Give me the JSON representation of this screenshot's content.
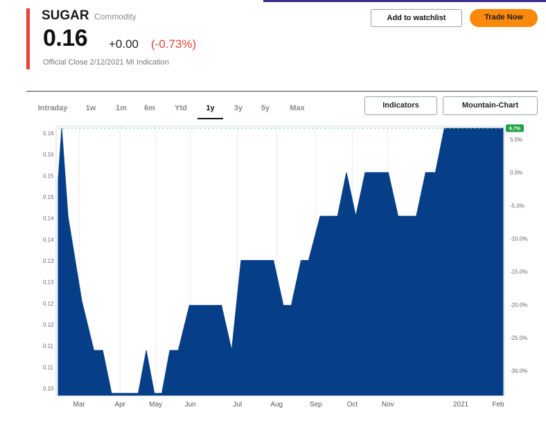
{
  "header": {
    "symbol": "SUGAR",
    "asset_type": "Commodity",
    "price": "0.16",
    "change": "+0.00",
    "change_pct": "(-0.73%)",
    "close_info": "Official Close 2/12/2021 MI Indication",
    "accent_color": "#e8433a"
  },
  "actions": {
    "watchlist_label": "Add to watchlist",
    "trade_label": "Trade Now"
  },
  "range_tabs": [
    {
      "label": "Intraday",
      "active": false
    },
    {
      "label": "1w",
      "active": false
    },
    {
      "label": "1m",
      "active": false
    },
    {
      "label": "6m",
      "active": false
    },
    {
      "label": "Ytd",
      "active": false
    },
    {
      "label": "1y",
      "active": true
    },
    {
      "label": "3y",
      "active": false
    },
    {
      "label": "5y",
      "active": false
    },
    {
      "label": "Max",
      "active": false
    }
  ],
  "chart_controls": {
    "indicators_label": "Indicators",
    "chart_type_label": "Mountain-Chart"
  },
  "chart_data": {
    "type": "area",
    "color": "#063f87",
    "y_left_ticks": [
      "0.16",
      "0.16",
      "0.15",
      "0.15",
      "0.14",
      "0.14",
      "0.13",
      "0.13",
      "0.12",
      "0.12",
      "0.11",
      "0.11",
      "0.10"
    ],
    "y_right_ticks": [
      "5.0%",
      "0.0%",
      "-5.0%",
      "-10.0%",
      "-15.0%",
      "-20.0%",
      "-25.0%",
      "-30.0%"
    ],
    "y_right_values": [
      5,
      0,
      -5,
      -10,
      -15,
      -20,
      -25,
      -30
    ],
    "x_ticks": [
      {
        "label": "Mar",
        "t": 0.047
      },
      {
        "label": "Apr",
        "t": 0.139
      },
      {
        "label": "May",
        "t": 0.219
      },
      {
        "label": "Jun",
        "t": 0.297
      },
      {
        "label": "Jul",
        "t": 0.403
      },
      {
        "label": "Aug",
        "t": 0.491
      },
      {
        "label": "Sep",
        "t": 0.579
      },
      {
        "label": "Oct",
        "t": 0.661
      },
      {
        "label": "Nov",
        "t": 0.741
      },
      {
        "label": "2021",
        "t": 0.905
      },
      {
        "label": "Feb",
        "t": 0.989
      }
    ],
    "ylim_pct": [
      -33.7,
      7.0
    ],
    "last_label": "6.7%",
    "reference_pct": 6.7,
    "series": [
      {
        "values": [
          [
            0.0,
            -1.0
          ],
          [
            0.008,
            6.7
          ],
          [
            0.022,
            -6.6
          ],
          [
            0.053,
            -19.4
          ],
          [
            0.08,
            -26.9
          ],
          [
            0.1,
            -26.9
          ],
          [
            0.12,
            -33.4
          ],
          [
            0.18,
            -33.4
          ],
          [
            0.198,
            -26.9
          ],
          [
            0.216,
            -33.4
          ],
          [
            0.233,
            -33.4
          ],
          [
            0.251,
            -26.9
          ],
          [
            0.27,
            -26.9
          ],
          [
            0.295,
            -20.1
          ],
          [
            0.367,
            -20.1
          ],
          [
            0.39,
            -26.9
          ],
          [
            0.411,
            -13.3
          ],
          [
            0.484,
            -13.3
          ],
          [
            0.506,
            -20.1
          ],
          [
            0.524,
            -20.1
          ],
          [
            0.546,
            -13.3
          ],
          [
            0.563,
            -13.3
          ],
          [
            0.589,
            -6.6
          ],
          [
            0.628,
            -6.6
          ],
          [
            0.648,
            0.0
          ],
          [
            0.669,
            -6.6
          ],
          [
            0.69,
            0.0
          ],
          [
            0.742,
            0.0
          ],
          [
            0.764,
            -6.6
          ],
          [
            0.805,
            -6.6
          ],
          [
            0.826,
            0.0
          ],
          [
            0.848,
            0.0
          ],
          [
            0.868,
            6.7
          ],
          [
            1.0,
            6.7
          ]
        ]
      }
    ]
  }
}
